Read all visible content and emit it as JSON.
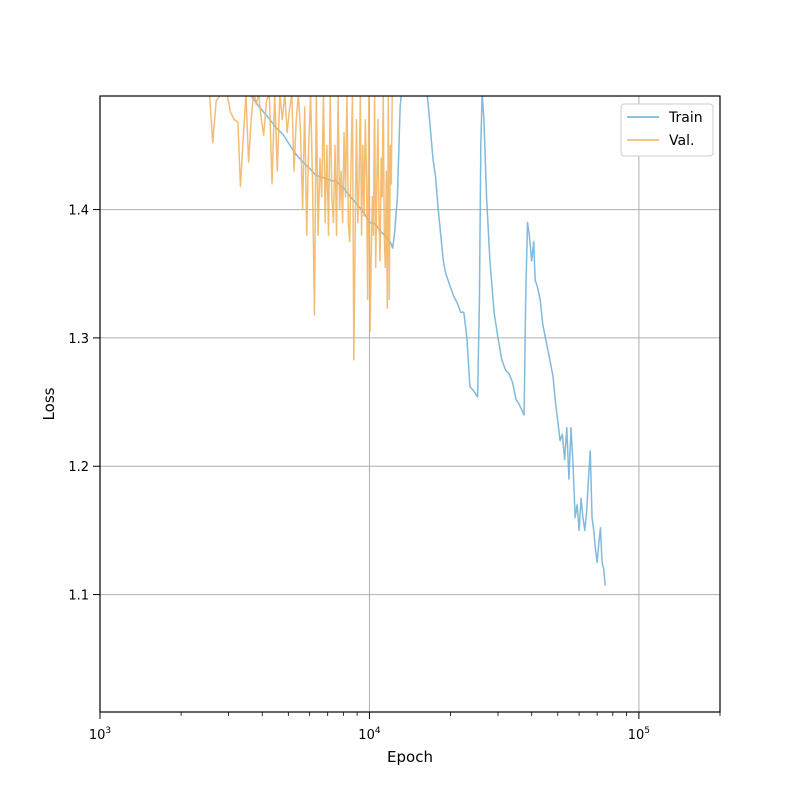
{
  "chart_data": {
    "type": "line",
    "title": "",
    "xlabel": "Epoch",
    "ylabel": "Loss",
    "xscale": "log",
    "xlim": [
      1000,
      200000
    ],
    "ylim": [
      1.0085,
      1.4885
    ],
    "grid": true,
    "legend_position": "top-right",
    "x_ticks": [
      {
        "value": 1000,
        "base": "10",
        "exp": "3"
      },
      {
        "value": 10000,
        "base": "10",
        "exp": "4"
      },
      {
        "value": 100000,
        "base": "10",
        "exp": "5"
      }
    ],
    "y_ticks": [
      {
        "value": 1.1,
        "label": "1.1"
      },
      {
        "value": 1.2,
        "label": "1.2"
      },
      {
        "value": 1.3,
        "label": "1.3"
      },
      {
        "value": 1.4,
        "label": "1.4"
      }
    ],
    "series": [
      {
        "name": "Train",
        "color": "#6aaed6",
        "points": [
          [
            3600,
            1.49
          ],
          [
            3900,
            1.48
          ],
          [
            4200,
            1.472
          ],
          [
            4500,
            1.464
          ],
          [
            4800,
            1.458
          ],
          [
            5000,
            1.452
          ],
          [
            5300,
            1.444
          ],
          [
            5600,
            1.438
          ],
          [
            6000,
            1.432
          ],
          [
            6300,
            1.427
          ],
          [
            6700,
            1.425
          ],
          [
            7100,
            1.423
          ],
          [
            7500,
            1.422
          ],
          [
            8000,
            1.417
          ],
          [
            8500,
            1.41
          ],
          [
            9000,
            1.404
          ],
          [
            9500,
            1.398
          ],
          [
            10000,
            1.39
          ],
          [
            10500,
            1.389
          ],
          [
            11000,
            1.383
          ],
          [
            11500,
            1.379
          ],
          [
            12000,
            1.374
          ],
          [
            12200,
            1.37
          ],
          [
            12400,
            1.382
          ],
          [
            12700,
            1.41
          ],
          [
            13000,
            1.48
          ],
          [
            13200,
            1.495
          ],
          [
            16300,
            1.495
          ],
          [
            16800,
            1.465
          ],
          [
            17200,
            1.44
          ],
          [
            17600,
            1.425
          ],
          [
            18000,
            1.4
          ],
          [
            18400,
            1.38
          ],
          [
            18800,
            1.36
          ],
          [
            19200,
            1.35
          ],
          [
            19800,
            1.342
          ],
          [
            20500,
            1.333
          ],
          [
            21200,
            1.327
          ],
          [
            21800,
            1.32
          ],
          [
            22400,
            1.32
          ],
          [
            23000,
            1.3
          ],
          [
            23600,
            1.262
          ],
          [
            24500,
            1.258
          ],
          [
            25200,
            1.254
          ],
          [
            25600,
            1.33
          ],
          [
            25900,
            1.45
          ],
          [
            26200,
            1.49
          ],
          [
            26600,
            1.47
          ],
          [
            27200,
            1.41
          ],
          [
            28000,
            1.36
          ],
          [
            29000,
            1.32
          ],
          [
            30000,
            1.3
          ],
          [
            31000,
            1.283
          ],
          [
            32000,
            1.275
          ],
          [
            33000,
            1.272
          ],
          [
            34000,
            1.265
          ],
          [
            35000,
            1.252
          ],
          [
            36000,
            1.248
          ],
          [
            37500,
            1.24
          ],
          [
            38000,
            1.33
          ],
          [
            38600,
            1.39
          ],
          [
            39200,
            1.38
          ],
          [
            40000,
            1.36
          ],
          [
            40700,
            1.375
          ],
          [
            41200,
            1.345
          ],
          [
            42000,
            1.34
          ],
          [
            43000,
            1.33
          ],
          [
            44000,
            1.31
          ],
          [
            45000,
            1.3
          ],
          [
            46000,
            1.29
          ],
          [
            47000,
            1.28
          ],
          [
            48000,
            1.27
          ],
          [
            49000,
            1.25
          ],
          [
            50000,
            1.235
          ],
          [
            51000,
            1.22
          ],
          [
            52000,
            1.225
          ],
          [
            53000,
            1.205
          ],
          [
            54000,
            1.23
          ],
          [
            55000,
            1.19
          ],
          [
            56000,
            1.23
          ],
          [
            57000,
            1.2
          ],
          [
            58000,
            1.16
          ],
          [
            59000,
            1.17
          ],
          [
            60000,
            1.15
          ],
          [
            61000,
            1.175
          ],
          [
            62000,
            1.16
          ],
          [
            63000,
            1.15
          ],
          [
            64000,
            1.165
          ],
          [
            65000,
            1.19
          ],
          [
            66000,
            1.212
          ],
          [
            67000,
            1.16
          ],
          [
            68000,
            1.15
          ],
          [
            69000,
            1.135
          ],
          [
            70000,
            1.125
          ],
          [
            71000,
            1.14
          ],
          [
            72000,
            1.152
          ],
          [
            73000,
            1.125
          ],
          [
            74000,
            1.12
          ],
          [
            75000,
            1.107
          ]
        ]
      },
      {
        "name": "Val.",
        "color": "#f2b25c",
        "points": [
          [
            2550,
            1.49
          ],
          [
            2620,
            1.452
          ],
          [
            2700,
            1.485
          ],
          [
            2820,
            1.49
          ],
          [
            2950,
            1.492
          ],
          [
            3050,
            1.476
          ],
          [
            3150,
            1.47
          ],
          [
            3250,
            1.468
          ],
          [
            3320,
            1.418
          ],
          [
            3400,
            1.455
          ],
          [
            3480,
            1.49
          ],
          [
            3560,
            1.437
          ],
          [
            3640,
            1.47
          ],
          [
            3720,
            1.492
          ],
          [
            3800,
            1.482
          ],
          [
            3880,
            1.49
          ],
          [
            3960,
            1.472
          ],
          [
            4050,
            1.458
          ],
          [
            4150,
            1.485
          ],
          [
            4250,
            1.49
          ],
          [
            4350,
            1.42
          ],
          [
            4450,
            1.49
          ],
          [
            4550,
            1.43
          ],
          [
            4650,
            1.49
          ],
          [
            4750,
            1.47
          ],
          [
            4850,
            1.49
          ],
          [
            4950,
            1.46
          ],
          [
            5050,
            1.478
          ],
          [
            5150,
            1.49
          ],
          [
            5250,
            1.43
          ],
          [
            5350,
            1.47
          ],
          [
            5450,
            1.49
          ],
          [
            5550,
            1.46
          ],
          [
            5650,
            1.4
          ],
          [
            5750,
            1.48
          ],
          [
            5850,
            1.38
          ],
          [
            5950,
            1.45
          ],
          [
            6050,
            1.49
          ],
          [
            6150,
            1.42
          ],
          [
            6250,
            1.318
          ],
          [
            6350,
            1.49
          ],
          [
            6450,
            1.38
          ],
          [
            6550,
            1.44
          ],
          [
            6650,
            1.41
          ],
          [
            6750,
            1.49
          ],
          [
            6850,
            1.39
          ],
          [
            6950,
            1.45
          ],
          [
            7050,
            1.38
          ],
          [
            7150,
            1.49
          ],
          [
            7250,
            1.41
          ],
          [
            7350,
            1.39
          ],
          [
            7450,
            1.45
          ],
          [
            7550,
            1.38
          ],
          [
            7650,
            1.49
          ],
          [
            7750,
            1.4
          ],
          [
            7850,
            1.43
          ],
          [
            7950,
            1.39
          ],
          [
            8050,
            1.46
          ],
          [
            8150,
            1.41
          ],
          [
            8250,
            1.49
          ],
          [
            8350,
            1.39
          ],
          [
            8450,
            1.375
          ],
          [
            8550,
            1.44
          ],
          [
            8650,
            1.49
          ],
          [
            8750,
            1.283
          ],
          [
            8850,
            1.38
          ],
          [
            8950,
            1.47
          ],
          [
            9050,
            1.39
          ],
          [
            9150,
            1.42
          ],
          [
            9250,
            1.49
          ],
          [
            9350,
            1.38
          ],
          [
            9450,
            1.45
          ],
          [
            9550,
            1.395
          ],
          [
            9650,
            1.47
          ],
          [
            9750,
            1.43
          ],
          [
            9850,
            1.33
          ],
          [
            9950,
            1.49
          ],
          [
            10050,
            1.305
          ],
          [
            10150,
            1.36
          ],
          [
            10250,
            1.41
          ],
          [
            10350,
            1.38
          ],
          [
            10450,
            1.49
          ],
          [
            10550,
            1.355
          ],
          [
            10650,
            1.42
          ],
          [
            10750,
            1.47
          ],
          [
            10850,
            1.39
          ],
          [
            10950,
            1.36
          ],
          [
            11050,
            1.44
          ],
          [
            11150,
            1.41
          ],
          [
            11250,
            1.49
          ],
          [
            11350,
            1.38
          ],
          [
            11450,
            1.355
          ],
          [
            11550,
            1.43
          ],
          [
            11650,
            1.323
          ],
          [
            11750,
            1.49
          ],
          [
            11850,
            1.33
          ],
          [
            11950,
            1.45
          ],
          [
            12050,
            1.42
          ],
          [
            12150,
            1.49
          ]
        ]
      }
    ]
  }
}
